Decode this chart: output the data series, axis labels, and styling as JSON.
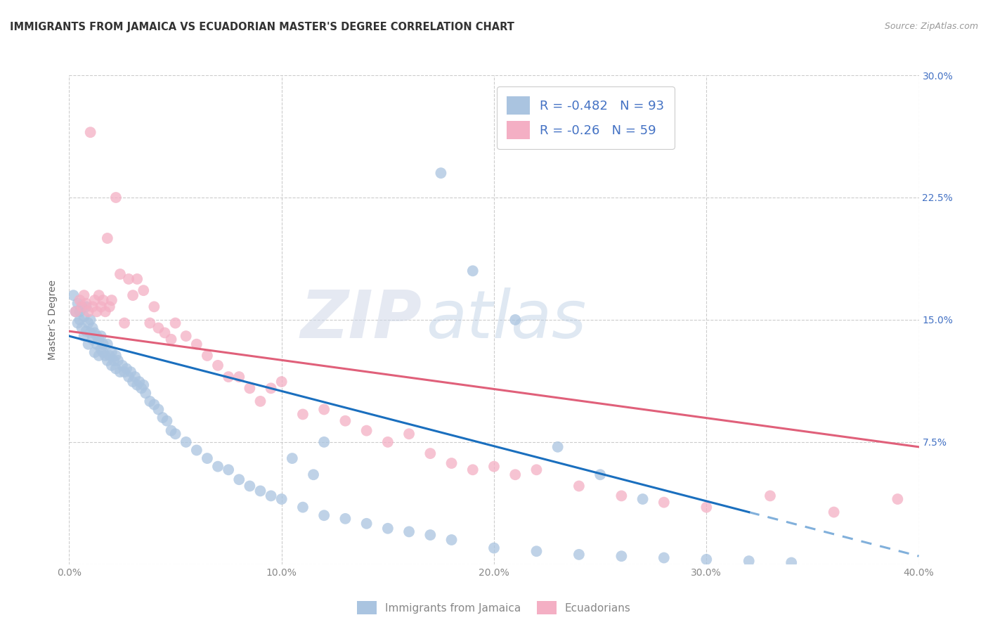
{
  "title": "IMMIGRANTS FROM JAMAICA VS ECUADORIAN MASTER'S DEGREE CORRELATION CHART",
  "source": "Source: ZipAtlas.com",
  "ylabel": "Master’s Degree",
  "x_min": 0.0,
  "x_max": 0.4,
  "y_min": 0.0,
  "y_max": 0.3,
  "x_ticks": [
    0.0,
    0.1,
    0.2,
    0.3,
    0.4
  ],
  "y_ticks": [
    0.0,
    0.075,
    0.15,
    0.225,
    0.3
  ],
  "legend_blue_label": "Immigrants from Jamaica",
  "legend_pink_label": "Ecuadorians",
  "R_blue": -0.482,
  "N_blue": 93,
  "R_pink": -0.26,
  "N_pink": 59,
  "blue_color": "#aac4e0",
  "pink_color": "#f4afc4",
  "blue_line_color": "#1a6fbe",
  "pink_line_color": "#e0607a",
  "watermark_zip": "ZIP",
  "watermark_atlas": "atlas",
  "right_tick_color": "#4472c4",
  "grid_color": "#cccccc",
  "background_color": "#ffffff",
  "title_fontsize": 10.5,
  "tick_fontsize": 10,
  "legend_fontsize": 12,
  "blue_scatter_x": [
    0.002,
    0.003,
    0.004,
    0.004,
    0.005,
    0.005,
    0.006,
    0.006,
    0.007,
    0.007,
    0.008,
    0.008,
    0.009,
    0.009,
    0.01,
    0.01,
    0.011,
    0.011,
    0.012,
    0.012,
    0.013,
    0.013,
    0.014,
    0.014,
    0.015,
    0.015,
    0.016,
    0.016,
    0.017,
    0.018,
    0.018,
    0.019,
    0.02,
    0.02,
    0.021,
    0.022,
    0.022,
    0.023,
    0.024,
    0.025,
    0.026,
    0.027,
    0.028,
    0.029,
    0.03,
    0.031,
    0.032,
    0.033,
    0.034,
    0.035,
    0.036,
    0.038,
    0.04,
    0.042,
    0.044,
    0.046,
    0.048,
    0.05,
    0.055,
    0.06,
    0.065,
    0.07,
    0.075,
    0.08,
    0.085,
    0.09,
    0.095,
    0.1,
    0.11,
    0.12,
    0.13,
    0.14,
    0.15,
    0.16,
    0.17,
    0.18,
    0.2,
    0.22,
    0.24,
    0.26,
    0.28,
    0.3,
    0.32,
    0.34,
    0.175,
    0.19,
    0.21,
    0.12,
    0.105,
    0.115,
    0.23,
    0.25,
    0.27
  ],
  "blue_scatter_y": [
    0.165,
    0.155,
    0.16,
    0.148,
    0.155,
    0.15,
    0.158,
    0.145,
    0.152,
    0.14,
    0.158,
    0.143,
    0.148,
    0.135,
    0.15,
    0.142,
    0.145,
    0.138,
    0.142,
    0.13,
    0.14,
    0.135,
    0.138,
    0.128,
    0.14,
    0.132,
    0.135,
    0.13,
    0.128,
    0.135,
    0.125,
    0.128,
    0.13,
    0.122,
    0.125,
    0.128,
    0.12,
    0.125,
    0.118,
    0.122,
    0.118,
    0.12,
    0.115,
    0.118,
    0.112,
    0.115,
    0.11,
    0.112,
    0.108,
    0.11,
    0.105,
    0.1,
    0.098,
    0.095,
    0.09,
    0.088,
    0.082,
    0.08,
    0.075,
    0.07,
    0.065,
    0.06,
    0.058,
    0.052,
    0.048,
    0.045,
    0.042,
    0.04,
    0.035,
    0.03,
    0.028,
    0.025,
    0.022,
    0.02,
    0.018,
    0.015,
    0.01,
    0.008,
    0.006,
    0.005,
    0.004,
    0.003,
    0.002,
    0.001,
    0.24,
    0.18,
    0.15,
    0.075,
    0.065,
    0.055,
    0.072,
    0.055,
    0.04
  ],
  "pink_scatter_x": [
    0.003,
    0.005,
    0.006,
    0.007,
    0.008,
    0.009,
    0.01,
    0.011,
    0.012,
    0.013,
    0.014,
    0.015,
    0.016,
    0.017,
    0.018,
    0.019,
    0.02,
    0.022,
    0.024,
    0.026,
    0.028,
    0.03,
    0.032,
    0.035,
    0.038,
    0.04,
    0.042,
    0.045,
    0.048,
    0.05,
    0.055,
    0.06,
    0.065,
    0.07,
    0.075,
    0.08,
    0.085,
    0.09,
    0.095,
    0.1,
    0.11,
    0.12,
    0.13,
    0.14,
    0.15,
    0.16,
    0.17,
    0.18,
    0.19,
    0.2,
    0.21,
    0.22,
    0.24,
    0.26,
    0.28,
    0.3,
    0.33,
    0.36,
    0.39
  ],
  "pink_scatter_y": [
    0.155,
    0.162,
    0.158,
    0.165,
    0.16,
    0.155,
    0.265,
    0.158,
    0.162,
    0.155,
    0.165,
    0.158,
    0.162,
    0.155,
    0.2,
    0.158,
    0.162,
    0.225,
    0.178,
    0.148,
    0.175,
    0.165,
    0.175,
    0.168,
    0.148,
    0.158,
    0.145,
    0.142,
    0.138,
    0.148,
    0.14,
    0.135,
    0.128,
    0.122,
    0.115,
    0.115,
    0.108,
    0.1,
    0.108,
    0.112,
    0.092,
    0.095,
    0.088,
    0.082,
    0.075,
    0.08,
    0.068,
    0.062,
    0.058,
    0.06,
    0.055,
    0.058,
    0.048,
    0.042,
    0.038,
    0.035,
    0.042,
    0.032,
    0.04
  ]
}
